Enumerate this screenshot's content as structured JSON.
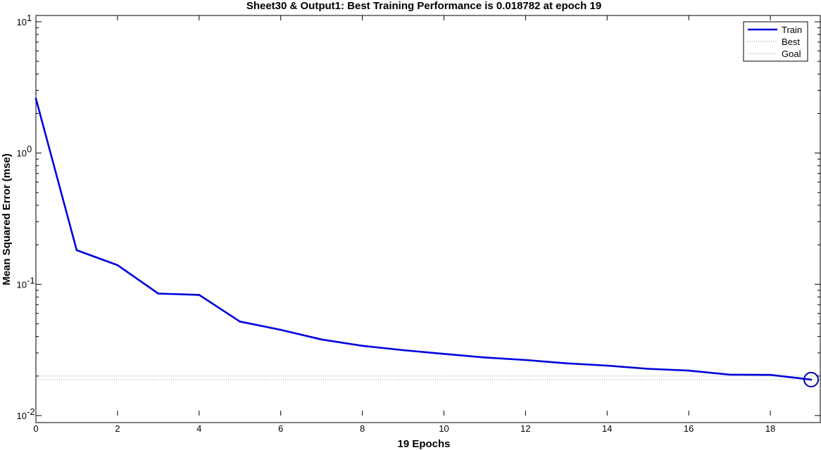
{
  "chart_data": {
    "type": "line",
    "title": "Sheet30 & Output1: Best Training Performance is 0.018782 at epoch 19",
    "xlabel": "19 Epochs",
    "ylabel": "Mean Squared Error  (mse)",
    "xlim": [
      0,
      19
    ],
    "ylim": [
      0.01,
      10
    ],
    "yscale": "log",
    "xticks": [
      "0",
      "2",
      "4",
      "6",
      "8",
      "10",
      "12",
      "14",
      "16",
      "18"
    ],
    "yticks": [
      {
        "base": "10",
        "exp": "1"
      },
      {
        "base": "10",
        "exp": "0"
      },
      {
        "base": "10",
        "exp": "-1"
      },
      {
        "base": "10",
        "exp": "-2"
      }
    ],
    "grid": false,
    "legend_position": "top-right",
    "legend": [
      "Train",
      "Best",
      "Goal"
    ],
    "series": [
      {
        "name": "Train",
        "color": "#0000dd",
        "x": [
          0,
          1,
          2,
          3,
          4,
          5,
          6,
          7,
          8,
          9,
          10,
          11,
          12,
          13,
          14,
          15,
          16,
          17,
          18,
          19
        ],
        "values": [
          2.6,
          0.182,
          0.14,
          0.085,
          0.083,
          0.052,
          0.045,
          0.038,
          0.034,
          0.0315,
          0.0295,
          0.0277,
          0.0265,
          0.025,
          0.024,
          0.0227,
          0.022,
          0.0205,
          0.0204,
          0.018782
        ]
      },
      {
        "name": "Best",
        "color": "#888888",
        "y": 0.018782
      },
      {
        "name": "Goal",
        "color": "#888888",
        "y": 0.02
      }
    ],
    "best_point": {
      "x": 19,
      "y": 0.018782,
      "color": "#0000aa"
    }
  }
}
